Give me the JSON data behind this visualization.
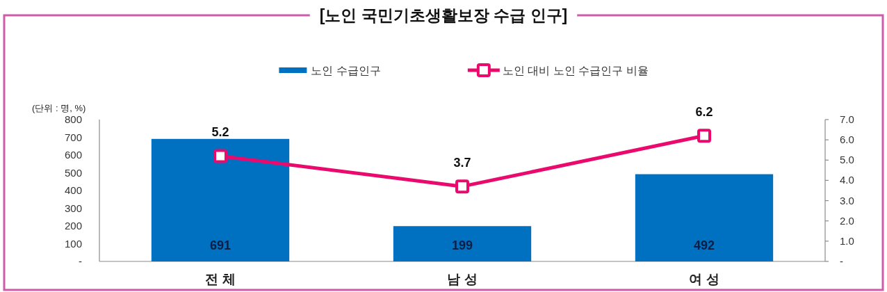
{
  "chart_data": {
    "type": "bar",
    "title": "[노인 국민기초생활보장 수급 인구]",
    "ylabel": "(단위 : 명, %)",
    "categories": [
      "전 체",
      "남 성",
      "여 성"
    ],
    "series": [
      {
        "name": "노인 수급인구",
        "color": "#0070c0",
        "values": [
          691,
          199,
          492
        ]
      },
      {
        "name": "노인 대비 노인 수급인구 비율",
        "type": "line",
        "axis": "y2",
        "color": "#ea0a6e",
        "values": [
          5.2,
          3.7,
          6.2
        ]
      }
    ],
    "ylim": [
      0,
      800
    ],
    "yticks": [
      {
        "value": 0,
        "label": "-"
      },
      100,
      200,
      300,
      400,
      500,
      600,
      700,
      800
    ],
    "y2lim": [
      0,
      7
    ],
    "y2ticks": [
      {
        "value": 0,
        "label": "-"
      },
      {
        "value": 1,
        "label": "1.0"
      },
      {
        "value": 2,
        "label": "2.0"
      },
      {
        "value": 3,
        "label": "3.0"
      },
      {
        "value": 4,
        "label": "4.0"
      },
      {
        "value": 5,
        "label": "5.0"
      },
      {
        "value": 6,
        "label": "6.0"
      },
      {
        "value": 7,
        "label": "7.0"
      }
    ],
    "legend": "top",
    "marker": "square",
    "line_style": "solid",
    "data_labels": true
  }
}
